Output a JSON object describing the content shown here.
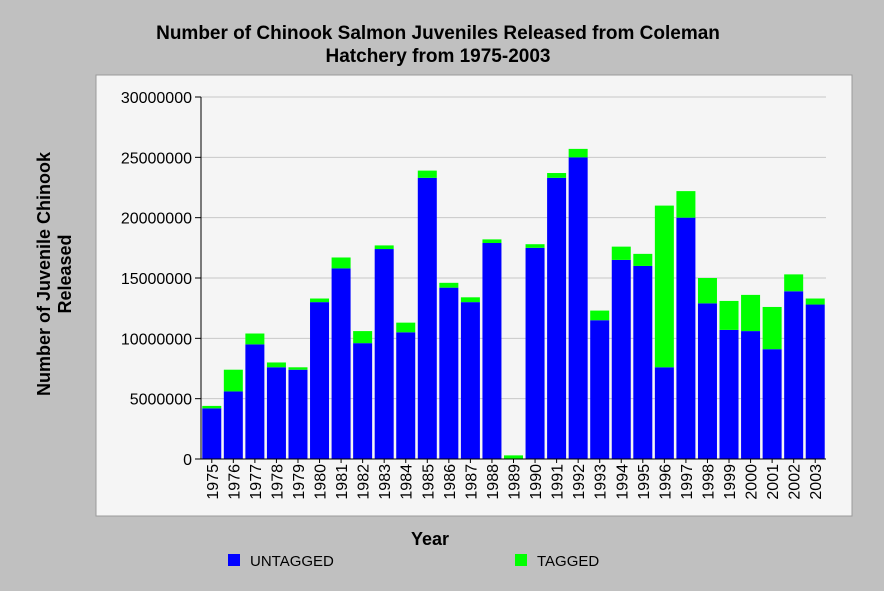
{
  "chart_data": {
    "type": "bar",
    "stacked": true,
    "title_line1": "Number of Chinook Salmon Juveniles Released from Coleman",
    "title_line2": "Hatchery from 1975-2003",
    "xlabel": "Year",
    "ylabel_line1": "Number of Juvenile Chinook",
    "ylabel_line2": "Released",
    "ylim": [
      0,
      30000000
    ],
    "yticks": [
      "0",
      "5000000",
      "10000000",
      "15000000",
      "20000000",
      "25000000",
      "30000000"
    ],
    "grid": true,
    "legend_position": "bottom",
    "categories": [
      "1975",
      "1976",
      "1977",
      "1978",
      "1979",
      "1980",
      "1981",
      "1982",
      "1983",
      "1984",
      "1985",
      "1986",
      "1987",
      "1988",
      "1989",
      "1990",
      "1991",
      "1992",
      "1993",
      "1994",
      "1995",
      "1996",
      "1997",
      "1998",
      "1999",
      "2000",
      "2001",
      "2002",
      "2003"
    ],
    "series": [
      {
        "name": "UNTAGGED",
        "color": "#0000ff",
        "values": [
          4200000,
          5600000,
          9500000,
          7600000,
          7400000,
          13000000,
          15800000,
          9600000,
          17400000,
          10500000,
          23300000,
          14200000,
          13000000,
          17900000,
          0,
          17500000,
          23300000,
          25000000,
          11500000,
          16500000,
          16000000,
          7600000,
          20000000,
          12900000,
          10700000,
          10600000,
          9100000,
          13900000,
          12800000
        ]
      },
      {
        "name": "TAGGED",
        "color": "#00ff00",
        "values": [
          200000,
          1800000,
          900000,
          400000,
          200000,
          300000,
          900000,
          1000000,
          300000,
          800000,
          600000,
          400000,
          400000,
          300000,
          300000,
          300000,
          400000,
          700000,
          800000,
          1100000,
          1000000,
          13400000,
          2200000,
          2100000,
          2400000,
          3000000,
          3500000,
          1400000,
          500000
        ]
      }
    ]
  }
}
